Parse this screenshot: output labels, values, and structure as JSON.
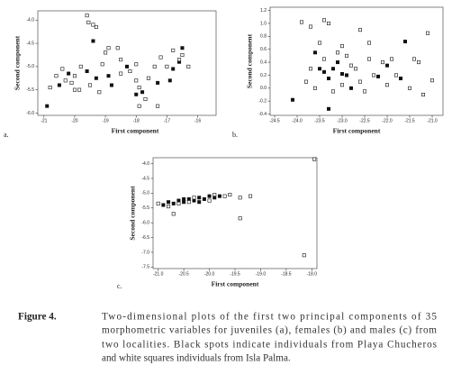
{
  "chart_data": [
    {
      "type": "scatter",
      "panel_label": "a.",
      "xlabel": "First component",
      "ylabel": "Second component",
      "xlim": [
        -21.2,
        -15.4
      ],
      "ylim": [
        -6.05,
        -3.8
      ],
      "xticks": [
        -21,
        -20,
        -19,
        -18,
        -17,
        -16
      ],
      "yticks": [
        {
          "value": -4,
          "label": "-4.0"
        },
        -4.5,
        {
          "value": -5,
          "label": "-5.0"
        },
        -5.5,
        {
          "value": -6,
          "label": "-6.0"
        }
      ],
      "series": [
        {
          "color": "#111111",
          "x": [
            -20.9,
            -20.2,
            -19.4,
            -18.9,
            -19.3,
            -19.6,
            -18.3,
            -18.0,
            -17.8,
            -17.3,
            -16.9,
            -16.6,
            -16.5,
            -16.8,
            -20.5,
            -18.8
          ],
          "values": [
            -5.85,
            -5.15,
            -4.45,
            -5.2,
            -5.25,
            -5.1,
            -5.0,
            -5.6,
            -5.55,
            -5.35,
            -5.3,
            -4.9,
            -4.6,
            -5.05,
            -5.4,
            -5.4
          ]
        },
        {
          "color": "#ffffff",
          "x": [
            -19.6,
            -19.55,
            -19.4,
            -19.3,
            -20.6,
            -20.4,
            -20.3,
            -20.1,
            -20.0,
            -19.85,
            -20.0,
            -19.8,
            -19.5,
            -19.0,
            -18.9,
            -19.1,
            -18.6,
            -18.5,
            -18.2,
            -18.0,
            -17.9,
            -17.7,
            -17.6,
            -17.4,
            -17.2,
            -17.0,
            -17.9,
            -17.3,
            -16.8,
            -16.6,
            -16.3,
            -16.5,
            -18.5,
            -19.2,
            -20.8,
            -18.0
          ],
          "values": [
            -3.9,
            -4.05,
            -4.1,
            -4.15,
            -5.2,
            -5.05,
            -5.3,
            -5.35,
            -5.5,
            -5.5,
            -5.2,
            -5.0,
            -5.4,
            -4.7,
            -4.6,
            -4.95,
            -4.6,
            -4.85,
            -5.1,
            -5.3,
            -5.45,
            -5.7,
            -5.25,
            -5.0,
            -4.8,
            -5.0,
            -5.85,
            -5.85,
            -4.65,
            -4.85,
            -5.0,
            -4.75,
            -5.15,
            -5.55,
            -5.45,
            -4.95
          ]
        }
      ]
    },
    {
      "type": "scatter",
      "panel_label": "b.",
      "xlabel": "First component",
      "ylabel": "Second component",
      "xlim": [
        -24.6,
        -20.76
      ],
      "ylim": [
        -0.42,
        1.25
      ],
      "xticks": [
        -24.5,
        {
          "value": -24,
          "label": "-24.0"
        },
        -23.5,
        {
          "value": -23,
          "label": "-23.0"
        },
        -22.5,
        {
          "value": -22,
          "label": "-22.0"
        },
        -21.5,
        {
          "value": -21,
          "label": "-21.0"
        }
      ],
      "yticks": [
        1.2,
        {
          "value": 1,
          "label": "1.0"
        },
        0.8,
        0.6,
        0.4,
        0.2,
        {
          "value": 0,
          "label": "0.0"
        },
        -0.2,
        -0.4
      ],
      "series": [
        {
          "color": "#111111",
          "x": [
            -24.1,
            -23.3,
            -23.5,
            -23.4,
            -23.3,
            -23.2,
            -23.1,
            -23.0,
            -22.9,
            -22.2,
            -22.0,
            -21.6,
            -23.6,
            -22.8,
            -21.7
          ],
          "values": [
            -0.18,
            -0.32,
            0.3,
            0.25,
            0.15,
            0.3,
            0.4,
            0.22,
            0.2,
            0.18,
            0.35,
            0.72,
            0.55,
            0.0,
            0.15
          ]
        },
        {
          "color": "#ffffff",
          "x": [
            -23.9,
            -23.7,
            -23.4,
            -23.3,
            -23.5,
            -23.0,
            -22.6,
            -22.4,
            -22.9,
            -22.7,
            -22.6,
            -22.3,
            -22.1,
            -21.9,
            -21.4,
            -21.3,
            -21.1,
            -21.0,
            -23.8,
            -23.6,
            -23.2,
            -23.0,
            -22.5,
            -22.8,
            -23.4,
            -23.7,
            -22.4,
            -21.8,
            -21.5,
            -21.2,
            -23.1,
            -22.0
          ],
          "values": [
            1.02,
            0.95,
            1.05,
            1.0,
            0.7,
            0.65,
            0.9,
            0.7,
            0.5,
            0.3,
            0.1,
            0.2,
            0.4,
            0.45,
            0.45,
            0.4,
            0.85,
            0.12,
            0.1,
            0.0,
            -0.05,
            0.05,
            -0.05,
            0.35,
            0.45,
            0.3,
            0.45,
            0.2,
            0.0,
            -0.1,
            0.55,
            0.05
          ]
        }
      ]
    },
    {
      "type": "scatter",
      "panel_label": "c.",
      "xlabel": "First component",
      "ylabel": "Second component",
      "xlim": [
        -21.1,
        -17.9
      ],
      "ylim": [
        -7.55,
        -3.8
      ],
      "xticks": [
        {
          "value": -21,
          "label": "-21.0"
        },
        -20.5,
        {
          "value": -20,
          "label": "-20.0"
        },
        -19.5,
        {
          "value": -19,
          "label": "-19.0"
        },
        -18.5,
        {
          "value": -18,
          "label": "-18.0"
        }
      ],
      "yticks": [
        {
          "value": -4,
          "label": "-4.0"
        },
        -4.5,
        {
          "value": -5,
          "label": "-5.0"
        },
        -5.5,
        {
          "value": -6,
          "label": "-6.0"
        },
        -6.5,
        {
          "value": -7,
          "label": "-7.0"
        },
        -7.5
      ],
      "series": [
        {
          "color": "#111111",
          "x": [
            -20.9,
            -20.8,
            -20.7,
            -20.6,
            -20.5,
            -20.4,
            -20.3,
            -20.2,
            -20.1,
            -20.0,
            -19.9,
            -19.8,
            -20.5,
            -20.2
          ],
          "values": [
            -5.4,
            -5.3,
            -5.35,
            -5.25,
            -5.3,
            -5.2,
            -5.25,
            -5.15,
            -5.2,
            -5.1,
            -5.15,
            -5.1,
            -5.2,
            -5.3
          ]
        },
        {
          "color": "#ffffff",
          "x": [
            -21.0,
            -20.8,
            -20.7,
            -20.6,
            -20.4,
            -20.3,
            -20.0,
            -19.9,
            -19.7,
            -19.6,
            -19.4,
            -19.4,
            -19.2,
            -17.95,
            -18.15
          ],
          "values": [
            -5.35,
            -5.45,
            -5.7,
            -5.35,
            -5.3,
            -5.15,
            -5.25,
            -5.05,
            -5.1,
            -5.05,
            -5.15,
            -5.85,
            -5.1,
            -3.85,
            -7.1
          ]
        }
      ]
    }
  ],
  "caption": {
    "label": "Figure 4.",
    "lines": [
      "Two-dimensional plots of the first two principal components of 35",
      "morphometric variables for juveniles (a), females (b) and males (c) from",
      "two localities. Black spots indicate individuals from Playa Chucheros",
      "and white squares individuals from Isla Palma."
    ]
  }
}
